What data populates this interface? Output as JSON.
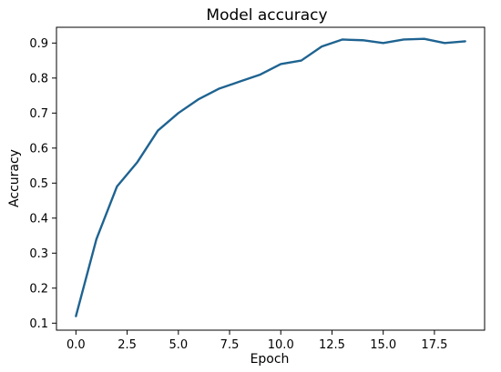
{
  "chart_data": {
    "type": "line",
    "title": "Model accuracy",
    "xlabel": "Epoch",
    "ylabel": "Accuracy",
    "xlim": [
      -0.95,
      19.95
    ],
    "ylim": [
      0.08,
      0.945
    ],
    "xticks": [
      0.0,
      2.5,
      5.0,
      7.5,
      10.0,
      12.5,
      15.0,
      17.5
    ],
    "xtick_labels": [
      "0.0",
      "2.5",
      "5.0",
      "7.5",
      "10.0",
      "12.5",
      "15.0",
      "17.5"
    ],
    "yticks": [
      0.1,
      0.2,
      0.3,
      0.4,
      0.5,
      0.6,
      0.7,
      0.8,
      0.9
    ],
    "ytick_labels": [
      "0.1",
      "0.2",
      "0.3",
      "0.4",
      "0.5",
      "0.6",
      "0.7",
      "0.8",
      "0.9"
    ],
    "grid": false,
    "series": [
      {
        "color": "#1f6391",
        "x": [
          0,
          1,
          2,
          3,
          4,
          5,
          6,
          7,
          8,
          9,
          10,
          11,
          12,
          13,
          14,
          15,
          16,
          17,
          18,
          19
        ],
        "values": [
          0.12,
          0.34,
          0.49,
          0.56,
          0.65,
          0.7,
          0.74,
          0.77,
          0.79,
          0.81,
          0.84,
          0.85,
          0.89,
          0.91,
          0.908,
          0.9,
          0.91,
          0.912,
          0.9,
          0.905
        ]
      }
    ]
  }
}
